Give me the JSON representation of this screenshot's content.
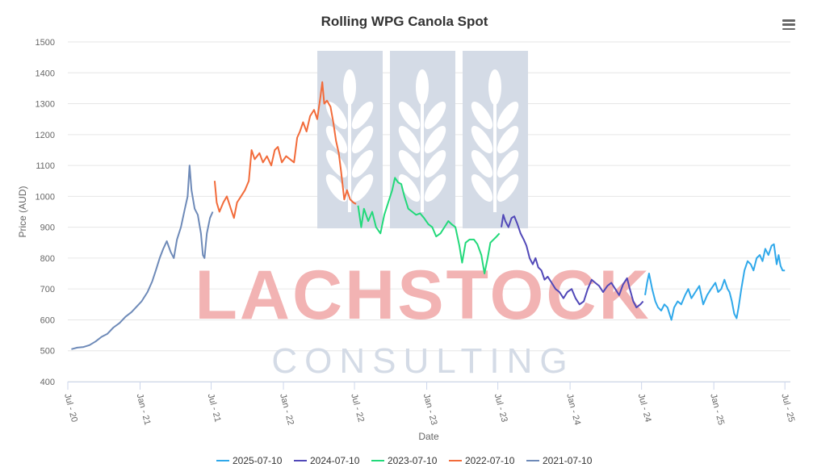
{
  "chart_data": {
    "type": "line",
    "title": "Rolling WPG Canola Spot",
    "xlabel": "Date",
    "ylabel": "Price (AUD)",
    "ylim": [
      400,
      1500
    ],
    "yticks": [
      400,
      500,
      600,
      700,
      800,
      900,
      1000,
      1100,
      1200,
      1300,
      1400,
      1500
    ],
    "xlim": [
      "2020-07-01",
      "2025-07-15"
    ],
    "xticks": [
      {
        "date": "2020-07-01",
        "label": "Jul - 20"
      },
      {
        "date": "2021-01-01",
        "label": "Jan - 21"
      },
      {
        "date": "2021-07-01",
        "label": "Jul - 21"
      },
      {
        "date": "2022-01-01",
        "label": "Jan - 22"
      },
      {
        "date": "2022-07-01",
        "label": "Jul - 22"
      },
      {
        "date": "2023-01-01",
        "label": "Jan - 23"
      },
      {
        "date": "2023-07-01",
        "label": "Jul - 23"
      },
      {
        "date": "2024-01-01",
        "label": "Jan - 24"
      },
      {
        "date": "2024-07-01",
        "label": "Jul - 24"
      },
      {
        "date": "2025-01-01",
        "label": "Jan - 25"
      },
      {
        "date": "2025-07-01",
        "label": "Jul - 25"
      }
    ],
    "grid": true,
    "legend_position": "bottom",
    "series": [
      {
        "name": "2021-07-10",
        "color": "#6e8ab8",
        "points": [
          [
            "2020-07-10",
            505
          ],
          [
            "2020-07-25",
            510
          ],
          [
            "2020-08-10",
            512
          ],
          [
            "2020-08-25",
            518
          ],
          [
            "2020-09-10",
            530
          ],
          [
            "2020-09-25",
            545
          ],
          [
            "2020-10-10",
            555
          ],
          [
            "2020-10-25",
            575
          ],
          [
            "2020-11-10",
            590
          ],
          [
            "2020-11-25",
            610
          ],
          [
            "2020-12-10",
            625
          ],
          [
            "2020-12-25",
            645
          ],
          [
            "2021-01-05",
            660
          ],
          [
            "2021-01-20",
            690
          ],
          [
            "2021-02-01",
            725
          ],
          [
            "2021-02-10",
            760
          ],
          [
            "2021-02-20",
            800
          ],
          [
            "2021-03-01",
            830
          ],
          [
            "2021-03-10",
            855
          ],
          [
            "2021-03-20",
            820
          ],
          [
            "2021-03-28",
            800
          ],
          [
            "2021-04-05",
            860
          ],
          [
            "2021-04-15",
            900
          ],
          [
            "2021-04-25",
            960
          ],
          [
            "2021-05-02",
            1000
          ],
          [
            "2021-05-07",
            1100
          ],
          [
            "2021-05-12",
            1020
          ],
          [
            "2021-05-20",
            960
          ],
          [
            "2021-05-28",
            940
          ],
          [
            "2021-06-05",
            880
          ],
          [
            "2021-06-10",
            810
          ],
          [
            "2021-06-14",
            800
          ],
          [
            "2021-06-20",
            880
          ],
          [
            "2021-06-28",
            930
          ],
          [
            "2021-07-05",
            950
          ]
        ]
      },
      {
        "name": "2022-07-10",
        "color": "#f26b3a",
        "points": [
          [
            "2021-07-10",
            1050
          ],
          [
            "2021-07-15",
            980
          ],
          [
            "2021-07-22",
            950
          ],
          [
            "2021-08-01",
            980
          ],
          [
            "2021-08-10",
            1000
          ],
          [
            "2021-08-20",
            960
          ],
          [
            "2021-08-28",
            930
          ],
          [
            "2021-09-05",
            980
          ],
          [
            "2021-09-15",
            1000
          ],
          [
            "2021-09-25",
            1020
          ],
          [
            "2021-10-05",
            1050
          ],
          [
            "2021-10-12",
            1150
          ],
          [
            "2021-10-20",
            1120
          ],
          [
            "2021-11-01",
            1140
          ],
          [
            "2021-11-10",
            1110
          ],
          [
            "2021-11-20",
            1130
          ],
          [
            "2021-12-01",
            1100
          ],
          [
            "2021-12-10",
            1150
          ],
          [
            "2021-12-18",
            1160
          ],
          [
            "2021-12-28",
            1110
          ],
          [
            "2022-01-08",
            1130
          ],
          [
            "2022-01-18",
            1120
          ],
          [
            "2022-01-28",
            1110
          ],
          [
            "2022-02-05",
            1190
          ],
          [
            "2022-02-12",
            1210
          ],
          [
            "2022-02-20",
            1240
          ],
          [
            "2022-03-01",
            1210
          ],
          [
            "2022-03-10",
            1260
          ],
          [
            "2022-03-20",
            1280
          ],
          [
            "2022-03-28",
            1250
          ],
          [
            "2022-04-05",
            1320
          ],
          [
            "2022-04-10",
            1370
          ],
          [
            "2022-04-15",
            1300
          ],
          [
            "2022-04-22",
            1310
          ],
          [
            "2022-05-01",
            1290
          ],
          [
            "2022-05-08",
            1240
          ],
          [
            "2022-05-15",
            1180
          ],
          [
            "2022-05-22",
            1140
          ],
          [
            "2022-05-28",
            1080
          ],
          [
            "2022-06-05",
            990
          ],
          [
            "2022-06-12",
            1020
          ],
          [
            "2022-06-20",
            990
          ],
          [
            "2022-06-28",
            980
          ],
          [
            "2022-07-05",
            975
          ]
        ]
      },
      {
        "name": "2023-07-10",
        "color": "#22d97a",
        "points": [
          [
            "2022-07-10",
            970
          ],
          [
            "2022-07-18",
            900
          ],
          [
            "2022-07-25",
            960
          ],
          [
            "2022-08-05",
            920
          ],
          [
            "2022-08-15",
            950
          ],
          [
            "2022-08-25",
            900
          ],
          [
            "2022-09-05",
            880
          ],
          [
            "2022-09-15",
            940
          ],
          [
            "2022-09-25",
            980
          ],
          [
            "2022-10-05",
            1020
          ],
          [
            "2022-10-12",
            1060
          ],
          [
            "2022-10-20",
            1045
          ],
          [
            "2022-10-28",
            1040
          ],
          [
            "2022-11-05",
            1000
          ],
          [
            "2022-11-15",
            960
          ],
          [
            "2022-11-25",
            950
          ],
          [
            "2022-12-05",
            940
          ],
          [
            "2022-12-15",
            945
          ],
          [
            "2022-12-25",
            930
          ],
          [
            "2023-01-05",
            910
          ],
          [
            "2023-01-15",
            900
          ],
          [
            "2023-01-25",
            870
          ],
          [
            "2023-02-05",
            880
          ],
          [
            "2023-02-15",
            900
          ],
          [
            "2023-02-25",
            920
          ],
          [
            "2023-03-05",
            910
          ],
          [
            "2023-03-15",
            900
          ],
          [
            "2023-03-25",
            840
          ],
          [
            "2023-04-01",
            785
          ],
          [
            "2023-04-10",
            850
          ],
          [
            "2023-04-20",
            860
          ],
          [
            "2023-05-01",
            860
          ],
          [
            "2023-05-10",
            845
          ],
          [
            "2023-05-20",
            810
          ],
          [
            "2023-05-28",
            750
          ],
          [
            "2023-06-05",
            800
          ],
          [
            "2023-06-12",
            850
          ],
          [
            "2023-06-20",
            860
          ],
          [
            "2023-06-28",
            870
          ],
          [
            "2023-07-05",
            880
          ]
        ]
      },
      {
        "name": "2024-07-10",
        "color": "#5148b8",
        "points": [
          [
            "2023-07-10",
            900
          ],
          [
            "2023-07-15",
            940
          ],
          [
            "2023-07-20",
            920
          ],
          [
            "2023-07-28",
            900
          ],
          [
            "2023-08-05",
            930
          ],
          [
            "2023-08-12",
            935
          ],
          [
            "2023-08-20",
            910
          ],
          [
            "2023-08-28",
            880
          ],
          [
            "2023-09-05",
            860
          ],
          [
            "2023-09-12",
            840
          ],
          [
            "2023-09-20",
            800
          ],
          [
            "2023-09-28",
            780
          ],
          [
            "2023-10-05",
            800
          ],
          [
            "2023-10-12",
            770
          ],
          [
            "2023-10-20",
            760
          ],
          [
            "2023-10-28",
            730
          ],
          [
            "2023-11-05",
            740
          ],
          [
            "2023-11-15",
            720
          ],
          [
            "2023-11-25",
            700
          ],
          [
            "2023-12-05",
            690
          ],
          [
            "2023-12-15",
            670
          ],
          [
            "2023-12-25",
            690
          ],
          [
            "2024-01-05",
            700
          ],
          [
            "2024-01-15",
            670
          ],
          [
            "2024-01-25",
            650
          ],
          [
            "2024-02-05",
            660
          ],
          [
            "2024-02-15",
            700
          ],
          [
            "2024-02-25",
            730
          ],
          [
            "2024-03-05",
            720
          ],
          [
            "2024-03-15",
            710
          ],
          [
            "2024-03-25",
            690
          ],
          [
            "2024-04-05",
            710
          ],
          [
            "2024-04-15",
            720
          ],
          [
            "2024-04-25",
            700
          ],
          [
            "2024-05-05",
            680
          ],
          [
            "2024-05-15",
            715
          ],
          [
            "2024-05-25",
            735
          ],
          [
            "2024-06-01",
            700
          ],
          [
            "2024-06-10",
            660
          ],
          [
            "2024-06-18",
            640
          ],
          [
            "2024-06-28",
            650
          ],
          [
            "2024-07-05",
            660
          ]
        ]
      },
      {
        "name": "2025-07-10",
        "color": "#2fa8ea",
        "points": [
          [
            "2024-07-10",
            680
          ],
          [
            "2024-07-15",
            720
          ],
          [
            "2024-07-20",
            750
          ],
          [
            "2024-07-28",
            700
          ],
          [
            "2024-08-05",
            660
          ],
          [
            "2024-08-12",
            640
          ],
          [
            "2024-08-20",
            630
          ],
          [
            "2024-08-28",
            650
          ],
          [
            "2024-09-05",
            640
          ],
          [
            "2024-09-10",
            620
          ],
          [
            "2024-09-15",
            600
          ],
          [
            "2024-09-22",
            640
          ],
          [
            "2024-10-01",
            660
          ],
          [
            "2024-10-10",
            650
          ],
          [
            "2024-10-20",
            680
          ],
          [
            "2024-10-28",
            700
          ],
          [
            "2024-11-05",
            670
          ],
          [
            "2024-11-15",
            690
          ],
          [
            "2024-11-25",
            710
          ],
          [
            "2024-12-05",
            650
          ],
          [
            "2024-12-15",
            680
          ],
          [
            "2024-12-25",
            700
          ],
          [
            "2025-01-05",
            720
          ],
          [
            "2025-01-12",
            690
          ],
          [
            "2025-01-20",
            700
          ],
          [
            "2025-01-28",
            730
          ],
          [
            "2025-02-05",
            700
          ],
          [
            "2025-02-10",
            690
          ],
          [
            "2025-02-16",
            660
          ],
          [
            "2025-02-22",
            620
          ],
          [
            "2025-02-28",
            605
          ],
          [
            "2025-03-05",
            640
          ],
          [
            "2025-03-12",
            700
          ],
          [
            "2025-03-20",
            760
          ],
          [
            "2025-03-28",
            790
          ],
          [
            "2025-04-05",
            780
          ],
          [
            "2025-04-12",
            760
          ],
          [
            "2025-04-20",
            800
          ],
          [
            "2025-04-28",
            810
          ],
          [
            "2025-05-05",
            790
          ],
          [
            "2025-05-12",
            830
          ],
          [
            "2025-05-20",
            810
          ],
          [
            "2025-05-28",
            840
          ],
          [
            "2025-06-03",
            845
          ],
          [
            "2025-06-10",
            780
          ],
          [
            "2025-06-15",
            810
          ],
          [
            "2025-06-20",
            775
          ],
          [
            "2025-06-25",
            760
          ],
          [
            "2025-07-01",
            760
          ]
        ]
      }
    ],
    "legend_order": [
      "2025-07-10",
      "2024-07-10",
      "2023-07-10",
      "2022-07-10",
      "2021-07-10"
    ]
  },
  "watermark": {
    "line1": "LACHSTOCK",
    "line2": "CONSULTING",
    "color_main": "#f2b3b3",
    "color_sub": "#d4dbe6",
    "logo_color": "#d4dbe6"
  },
  "menu": {
    "icon": "hamburger-menu-icon"
  }
}
